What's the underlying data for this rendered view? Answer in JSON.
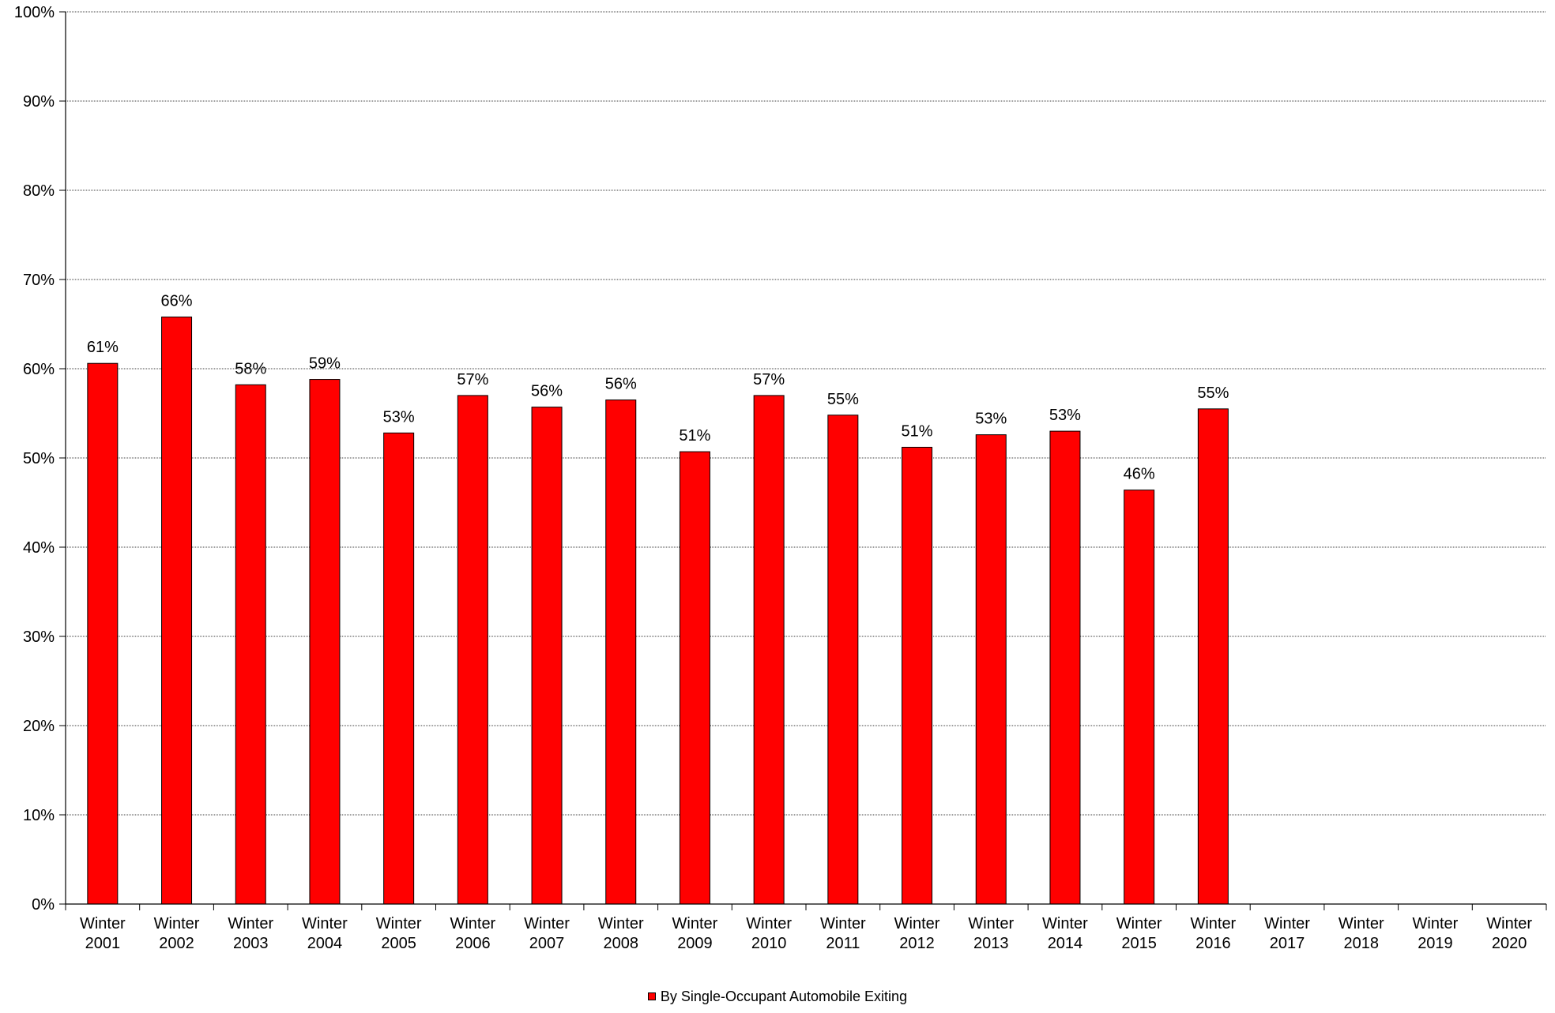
{
  "chart_data": {
    "type": "bar",
    "title": "",
    "xlabel": "",
    "ylabel": "",
    "ylim": [
      0,
      100
    ],
    "y_ticks": [
      "0%",
      "10%",
      "20%",
      "30%",
      "40%",
      "50%",
      "60%",
      "70%",
      "80%",
      "90%",
      "100%"
    ],
    "grid": "horizontal dotted",
    "categories": [
      {
        "line1": "Winter",
        "line2": "2001"
      },
      {
        "line1": "Winter",
        "line2": "2002"
      },
      {
        "line1": "Winter",
        "line2": "2003"
      },
      {
        "line1": "Winter",
        "line2": "2004"
      },
      {
        "line1": "Winter",
        "line2": "2005"
      },
      {
        "line1": "Winter",
        "line2": "2006"
      },
      {
        "line1": "Winter",
        "line2": "2007"
      },
      {
        "line1": "Winter",
        "line2": "2008"
      },
      {
        "line1": "Winter",
        "line2": "2009"
      },
      {
        "line1": "Winter",
        "line2": "2010"
      },
      {
        "line1": "Winter",
        "line2": "2011"
      },
      {
        "line1": "Winter",
        "line2": "2012"
      },
      {
        "line1": "Winter",
        "line2": "2013"
      },
      {
        "line1": "Winter",
        "line2": "2014"
      },
      {
        "line1": "Winter",
        "line2": "2015"
      },
      {
        "line1": "Winter",
        "line2": "2016"
      },
      {
        "line1": "Winter",
        "line2": "2017"
      },
      {
        "line1": "Winter",
        "line2": "2018"
      },
      {
        "line1": "Winter",
        "line2": "2019"
      },
      {
        "line1": "Winter",
        "line2": "2020"
      }
    ],
    "series": [
      {
        "name": "By Single-Occupant Automobile Exiting",
        "color": "#ff0000",
        "values": [
          60.6,
          65.8,
          58.2,
          58.8,
          52.8,
          57.0,
          55.7,
          56.5,
          50.7,
          57.0,
          54.8,
          51.2,
          52.6,
          53.0,
          46.4,
          55.5,
          null,
          null,
          null,
          null
        ],
        "data_labels": [
          "61%",
          "66%",
          "58%",
          "59%",
          "53%",
          "57%",
          "56%",
          "56%",
          "51%",
          "57%",
          "55%",
          "51%",
          "53%",
          "53%",
          "46%",
          "55%",
          "",
          "",
          "",
          ""
        ]
      }
    ],
    "legend_position": "bottom-center"
  }
}
